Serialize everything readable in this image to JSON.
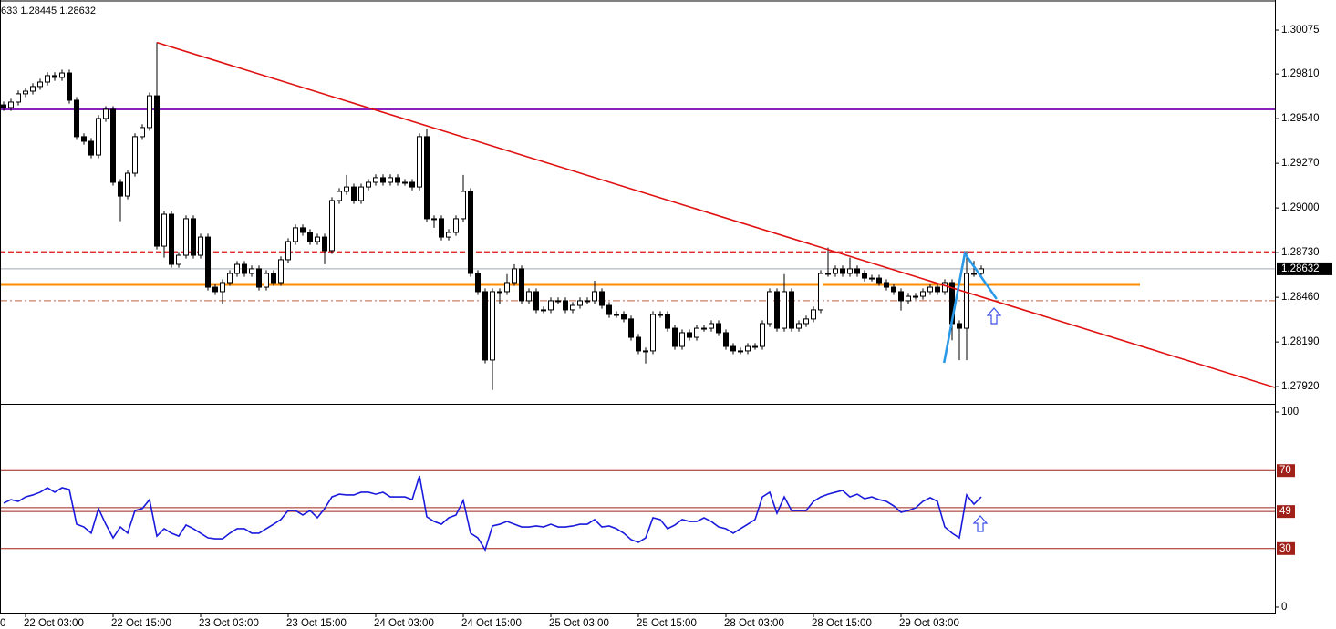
{
  "chart_data": [
    {
      "type": "candlestick",
      "header": "633 1.28445 1.28632",
      "xlim": [
        -0.5,
        174.25
      ],
      "clipped_x_label": "0",
      "x_labels": [
        {
          "index": 3,
          "label": "22 Oct 03:00"
        },
        {
          "index": 15,
          "label": "22 Oct 15:00"
        },
        {
          "index": 27,
          "label": "23 Oct 03:00"
        },
        {
          "index": 39,
          "label": "23 Oct 15:00"
        },
        {
          "index": 51,
          "label": "24 Oct 03:00"
        },
        {
          "index": 63,
          "label": "24 Oct 15:00"
        },
        {
          "index": 75,
          "label": "25 Oct 03:00"
        },
        {
          "index": 87,
          "label": "25 Oct 15:00"
        },
        {
          "index": 99,
          "label": "28 Oct 03:00"
        },
        {
          "index": 111,
          "label": "28 Oct 15:00"
        },
        {
          "index": 123,
          "label": "29 Oct 03:00"
        }
      ],
      "open": [
        1.29623,
        1.29607,
        1.2964,
        1.2969,
        1.29706,
        1.29734,
        1.29761,
        1.298,
        1.29789,
        1.29816,
        1.29651,
        1.29431,
        1.29403,
        1.2932,
        1.29541,
        1.29596,
        1.29155,
        1.29072,
        1.2921,
        1.29431,
        1.29486,
        1.29678,
        1.28769,
        1.28962,
        1.28659,
        1.28714,
        1.28935,
        1.28714,
        1.28824,
        1.28521,
        1.28494,
        1.28549,
        1.28604,
        1.28659,
        1.28604,
        1.28632,
        1.28521,
        1.28604,
        1.28549,
        1.28687,
        1.28797,
        1.2888,
        1.28852,
        1.28797,
        1.28824,
        1.28742,
        1.29045,
        1.291,
        1.29127,
        1.29045,
        1.29127,
        1.29155,
        1.29183,
        1.29155,
        1.29183,
        1.29155,
        1.29155,
        1.29127,
        1.29431,
        1.28935,
        1.28935,
        1.28824,
        1.28852,
        1.28935,
        1.291,
        1.28604,
        1.28494,
        1.28081,
        1.28494,
        1.28494,
        1.28549,
        1.28632,
        1.28439,
        1.28494,
        1.28384,
        1.28384,
        1.28439,
        1.28439,
        1.28384,
        1.28411,
        1.28439,
        1.28439,
        1.28494,
        1.28411,
        1.28356,
        1.28356,
        1.28329,
        1.28218,
        1.28136,
        1.28136,
        1.28356,
        1.28356,
        1.28273,
        1.28163,
        1.28246,
        1.28218,
        1.28273,
        1.28273,
        1.28301,
        1.28246,
        1.28163,
        1.28136,
        1.28136,
        1.28163,
        1.28163,
        1.28301,
        1.28494,
        1.28273,
        1.28494,
        1.28273,
        1.28301,
        1.28329,
        1.28384,
        1.28604,
        1.28604,
        1.28632,
        1.28604,
        1.28632,
        1.28604,
        1.28576,
        1.28576,
        1.28549,
        1.28521,
        1.28494,
        1.28439,
        1.28466,
        1.28466,
        1.28494,
        1.28521,
        1.28494,
        1.28549,
        1.28301,
        1.28273,
        1.28604,
        1.28604
      ],
      "high": [
        1.29643,
        1.2966,
        1.2971,
        1.29726,
        1.29754,
        1.29781,
        1.2982,
        1.2982,
        1.29836,
        1.29836,
        1.29671,
        1.29451,
        1.29423,
        1.29561,
        1.29616,
        1.29616,
        1.29175,
        1.2923,
        1.29451,
        1.29506,
        1.29698,
        1.3,
        1.28982,
        1.28982,
        1.28734,
        1.28955,
        1.28955,
        1.28844,
        1.28844,
        1.28541,
        1.28569,
        1.28624,
        1.28679,
        1.28679,
        1.28652,
        1.28652,
        1.28624,
        1.28624,
        1.28707,
        1.28817,
        1.289,
        1.289,
        1.28872,
        1.28844,
        1.28844,
        1.29065,
        1.2912,
        1.292,
        1.29147,
        1.29147,
        1.29175,
        1.29203,
        1.29203,
        1.29203,
        1.29203,
        1.29175,
        1.29175,
        1.29451,
        1.2948,
        1.28955,
        1.28955,
        1.28872,
        1.28955,
        1.292,
        1.2912,
        1.28624,
        1.28514,
        1.28514,
        1.28514,
        1.286,
        1.2866,
        1.28652,
        1.28514,
        1.28514,
        1.28404,
        1.28459,
        1.28459,
        1.28459,
        1.28431,
        1.28459,
        1.28459,
        1.2856,
        1.28514,
        1.28431,
        1.28376,
        1.28376,
        1.28349,
        1.28238,
        1.28156,
        1.28376,
        1.28376,
        1.28376,
        1.28293,
        1.28266,
        1.28266,
        1.28293,
        1.28293,
        1.28321,
        1.28321,
        1.28266,
        1.28183,
        1.28156,
        1.28183,
        1.28183,
        1.28321,
        1.28514,
        1.28514,
        1.286,
        1.28514,
        1.28321,
        1.28349,
        1.28404,
        1.28624,
        1.2876,
        1.28652,
        1.28652,
        1.287,
        1.28652,
        1.28624,
        1.28596,
        1.28596,
        1.28569,
        1.28541,
        1.28514,
        1.28486,
        1.28486,
        1.28514,
        1.28541,
        1.28541,
        1.28569,
        1.28569,
        1.28321,
        1.2874,
        1.2868,
        1.28652
      ],
      "low": [
        1.29587,
        1.29587,
        1.2962,
        1.2967,
        1.29686,
        1.29714,
        1.29741,
        1.29769,
        1.29769,
        1.29631,
        1.29411,
        1.29383,
        1.293,
        1.293,
        1.29521,
        1.29135,
        1.2892,
        1.29052,
        1.2919,
        1.29411,
        1.29466,
        1.28749,
        1.287,
        1.28639,
        1.28639,
        1.28694,
        1.28694,
        1.28694,
        1.28501,
        1.28474,
        1.2842,
        1.28529,
        1.28584,
        1.28584,
        1.28584,
        1.28501,
        1.28501,
        1.28529,
        1.28529,
        1.28667,
        1.28777,
        1.28832,
        1.28777,
        1.28777,
        1.2866,
        1.28722,
        1.29025,
        1.2908,
        1.29025,
        1.29025,
        1.29107,
        1.29135,
        1.29135,
        1.29135,
        1.29135,
        1.29135,
        1.29107,
        1.29107,
        1.28915,
        1.2888,
        1.28804,
        1.28804,
        1.28832,
        1.28915,
        1.28584,
        1.28474,
        1.28061,
        1.279,
        1.2842,
        1.28474,
        1.28529,
        1.28419,
        1.28419,
        1.28364,
        1.28364,
        1.28364,
        1.28419,
        1.28364,
        1.28364,
        1.28391,
        1.28419,
        1.28419,
        1.28391,
        1.28336,
        1.28336,
        1.28309,
        1.28198,
        1.28116,
        1.2806,
        1.28116,
        1.28336,
        1.28253,
        1.28143,
        1.28143,
        1.28198,
        1.28198,
        1.28253,
        1.28253,
        1.28226,
        1.28143,
        1.28116,
        1.28116,
        1.28116,
        1.28143,
        1.28143,
        1.28281,
        1.28253,
        1.28253,
        1.28253,
        1.28253,
        1.28281,
        1.28309,
        1.28364,
        1.28584,
        1.28584,
        1.28584,
        1.28584,
        1.28584,
        1.28556,
        1.28556,
        1.28529,
        1.28501,
        1.28474,
        1.2838,
        1.28419,
        1.28446,
        1.28446,
        1.28474,
        1.28474,
        1.28474,
        1.282,
        1.2808,
        1.2808,
        1.28584,
        1.28584
      ],
      "close": [
        1.29607,
        1.2964,
        1.2969,
        1.29706,
        1.29734,
        1.29761,
        1.298,
        1.29789,
        1.29816,
        1.29651,
        1.29431,
        1.29403,
        1.2932,
        1.29541,
        1.29596,
        1.29155,
        1.29072,
        1.2921,
        1.29431,
        1.29486,
        1.29678,
        1.28769,
        1.28962,
        1.28659,
        1.28714,
        1.28935,
        1.28714,
        1.28824,
        1.28521,
        1.28494,
        1.28549,
        1.28604,
        1.28659,
        1.28604,
        1.28632,
        1.28521,
        1.28604,
        1.28549,
        1.28687,
        1.28797,
        1.2888,
        1.28852,
        1.28797,
        1.28824,
        1.28742,
        1.29045,
        1.291,
        1.29127,
        1.29045,
        1.29127,
        1.29155,
        1.29183,
        1.29155,
        1.29183,
        1.29155,
        1.29155,
        1.29127,
        1.29431,
        1.28935,
        1.28935,
        1.28824,
        1.28852,
        1.28935,
        1.291,
        1.28604,
        1.28494,
        1.28081,
        1.28494,
        1.28494,
        1.28549,
        1.28632,
        1.28439,
        1.28494,
        1.28384,
        1.28384,
        1.28439,
        1.28439,
        1.28384,
        1.28411,
        1.28439,
        1.28439,
        1.28494,
        1.28411,
        1.28356,
        1.28356,
        1.28329,
        1.28218,
        1.28136,
        1.28136,
        1.28356,
        1.28356,
        1.28273,
        1.28163,
        1.28246,
        1.28218,
        1.28273,
        1.28273,
        1.28301,
        1.28246,
        1.28163,
        1.28136,
        1.28136,
        1.28163,
        1.28163,
        1.28301,
        1.28494,
        1.28273,
        1.28494,
        1.28273,
        1.28301,
        1.28329,
        1.28384,
        1.28604,
        1.28604,
        1.28632,
        1.28604,
        1.28632,
        1.28604,
        1.28576,
        1.28576,
        1.28549,
        1.28521,
        1.28494,
        1.28439,
        1.28466,
        1.28466,
        1.28494,
        1.28521,
        1.28494,
        1.28549,
        1.28301,
        1.28273,
        1.28604,
        1.28604,
        1.28632
      ],
      "up_color": "#ffffff",
      "down_color": "#000000",
      "edge_color": "#000000",
      "ylim": [
        1.27816,
        1.30257
      ],
      "yticks": [
        1.30075,
        {
          "value": 1.2981,
          "label": "1.29810"
        },
        {
          "value": 1.2954,
          "label": "1.29540"
        },
        {
          "value": 1.2927,
          "label": "1.29270"
        },
        {
          "value": 1.29,
          "label": "1.29000"
        },
        {
          "value": 1.2873,
          "label": "1.28730"
        },
        {
          "value": 1.2846,
          "label": "1.28460"
        },
        {
          "value": 1.2819,
          "label": "1.28190"
        },
        {
          "value": 1.2792,
          "label": "1.27920"
        }
      ],
      "current_price": 1.28632,
      "current_color": "#a0a8b0",
      "hlines": [
        {
          "value": 1.29596,
          "color": "#8a1fbf",
          "width": 2,
          "dash": "none"
        },
        {
          "value": 1.28735,
          "color": "#e01010",
          "width": 1.2,
          "dash": "6 3"
        },
        {
          "value": 1.28538,
          "color": "#ff8c00",
          "width": 3,
          "dash": "none",
          "end_index": 155.75
        },
        {
          "value": 1.28439,
          "color": "#c06040",
          "width": 1,
          "dash": "8 3 2 3"
        }
      ],
      "trendlines": [
        {
          "x": [
            21,
            174.25
          ],
          "y": [
            1.3,
            1.27915
          ],
          "color": "#e01010",
          "width": 1.6
        },
        {
          "x": [
            128.9,
            131.75,
            136.1
          ],
          "y": [
            1.28064,
            1.28725,
            1.2845
          ],
          "color": "#2a9ae8",
          "width": 2.6
        }
      ]
    },
    {
      "type": "line",
      "values": [
        53.3,
        55.1,
        54.2,
        56.5,
        57.5,
        58.9,
        61.2,
        58.9,
        61.2,
        60.3,
        42.5,
        41.1,
        37.9,
        50.5,
        42.5,
        35.5,
        41.1,
        37.9,
        49.5,
        50.5,
        55.1,
        36.4,
        40.2,
        37.9,
        36.4,
        42.1,
        40.2,
        37.9,
        35.5,
        35.0,
        35.0,
        37.9,
        40.2,
        40.2,
        37.9,
        37.9,
        40.2,
        42.5,
        44.9,
        49.5,
        49.5,
        47.2,
        49.5,
        45.8,
        50.5,
        56.5,
        57.9,
        57.5,
        57.5,
        58.9,
        58.9,
        57.9,
        58.9,
        56.5,
        56.5,
        56.5,
        55.1,
        67.3,
        46.3,
        43.9,
        42.5,
        45.8,
        47.2,
        54.7,
        37.9,
        35.5,
        29.4,
        41.6,
        42.5,
        43.9,
        42.5,
        41.1,
        41.1,
        41.6,
        41.1,
        42.5,
        41.1,
        41.1,
        41.6,
        42.5,
        42.5,
        44.9,
        41.1,
        41.6,
        40.2,
        37.9,
        34.6,
        33.2,
        35.5,
        45.8,
        44.9,
        40.2,
        42.1,
        44.9,
        43.9,
        43.9,
        45.8,
        43.9,
        41.1,
        40.2,
        37.9,
        40.2,
        42.5,
        44.9,
        56.5,
        58.9,
        48.1,
        56.5,
        49.5,
        49.5,
        49.5,
        54.2,
        56.5,
        57.9,
        58.9,
        59.8,
        56.5,
        57.9,
        55.6,
        56.5,
        55.1,
        54.2,
        51.9,
        48.6,
        49.5,
        50.9,
        54.2,
        56.1,
        54.2,
        41.1,
        37.9,
        35.5,
        57.5,
        52.8,
        56.5
      ],
      "color": "#1a1adc",
      "ylim": [
        0,
        100
      ],
      "yticks": [
        100,
        70,
        49,
        30,
        0
      ],
      "levels": [
        70,
        51,
        49,
        30
      ],
      "level_color": "#a0201a"
    }
  ]
}
